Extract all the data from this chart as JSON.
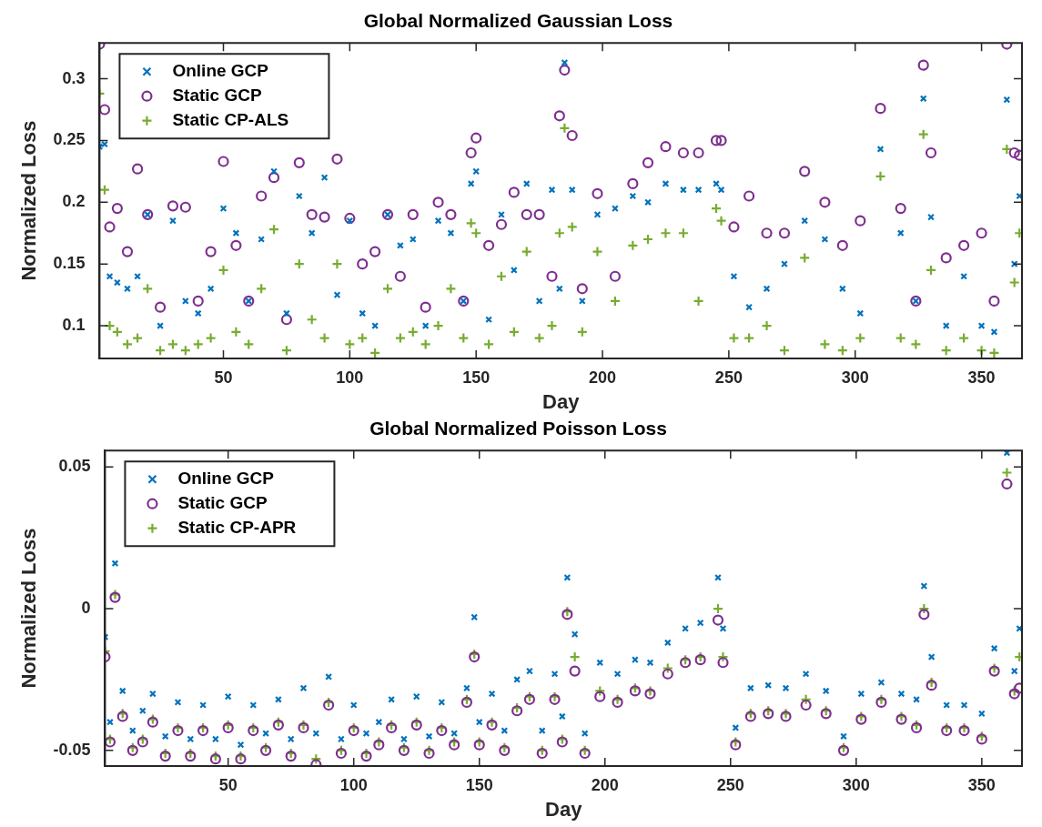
{
  "chart_data": [
    {
      "type": "scatter",
      "title": "Global Normalized Gaussian Loss",
      "xlabel": "Day",
      "ylabel": "Normalized Loss",
      "legend": "top left",
      "xlim": [
        1,
        366
      ],
      "xticks": [
        50,
        100,
        150,
        200,
        250,
        300,
        350
      ],
      "ylim": [
        0.0735,
        0.329
      ],
      "yticks": [
        0.1,
        0.15,
        0.2,
        0.25,
        0.3
      ],
      "x": [
        1,
        3,
        5,
        8,
        12,
        16,
        20,
        25,
        30,
        35,
        40,
        45,
        50,
        55,
        60,
        65,
        70,
        75,
        80,
        85,
        90,
        95,
        100,
        105,
        110,
        115,
        120,
        125,
        130,
        135,
        140,
        145,
        148,
        150,
        155,
        160,
        165,
        170,
        175,
        180,
        183,
        185,
        188,
        192,
        198,
        205,
        212,
        218,
        225,
        232,
        238,
        245,
        247,
        252,
        258,
        265,
        272,
        280,
        288,
        295,
        302,
        310,
        318,
        324,
        327,
        330,
        336,
        343,
        350,
        355,
        360,
        363,
        365
      ],
      "series": [
        {
          "name": "Online GCP",
          "color": "#0072bd",
          "marker": "x",
          "values": [
            0.245,
            0.247,
            0.14,
            0.135,
            0.13,
            0.14,
            0.19,
            0.1,
            0.185,
            0.12,
            0.11,
            0.13,
            0.195,
            0.175,
            0.12,
            0.17,
            0.225,
            0.11,
            0.205,
            0.175,
            0.22,
            0.125,
            0.185,
            0.11,
            0.1,
            0.19,
            0.165,
            0.17,
            0.1,
            0.185,
            0.175,
            0.12,
            0.215,
            0.225,
            0.105,
            0.19,
            0.145,
            0.215,
            0.12,
            0.21,
            0.13,
            0.313,
            0.21,
            0.12,
            0.19,
            0.195,
            0.205,
            0.2,
            0.215,
            0.21,
            0.21,
            0.215,
            0.21,
            0.14,
            0.115,
            0.13,
            0.15,
            0.185,
            0.17,
            0.13,
            0.11,
            0.243,
            0.175,
            0.12,
            0.284,
            0.188,
            0.1,
            0.14,
            0.1,
            0.095,
            0.283,
            0.15,
            0.205
          ]
        },
        {
          "name": "Static GCP",
          "color": "#7e2f8e",
          "marker": "circle",
          "values": [
            0.328,
            0.275,
            0.18,
            0.195,
            0.16,
            0.227,
            0.19,
            0.115,
            0.197,
            0.196,
            0.12,
            0.16,
            0.233,
            0.165,
            0.12,
            0.205,
            0.22,
            0.105,
            0.232,
            0.19,
            0.188,
            0.235,
            0.187,
            0.15,
            0.16,
            0.19,
            0.14,
            0.19,
            0.115,
            0.2,
            0.19,
            0.12,
            0.24,
            0.252,
            0.165,
            0.182,
            0.208,
            0.19,
            0.19,
            0.14,
            0.27,
            0.307,
            0.254,
            0.13,
            0.207,
            0.14,
            0.215,
            0.232,
            0.245,
            0.24,
            0.24,
            0.25,
            0.25,
            0.18,
            0.205,
            0.175,
            0.175,
            0.225,
            0.2,
            0.165,
            0.185,
            0.276,
            0.195,
            0.12,
            0.311,
            0.24,
            0.155,
            0.165,
            0.175,
            0.12,
            0.328,
            0.24,
            0.238
          ]
        },
        {
          "name": "Static CP-ALS",
          "color": "#77ac30",
          "marker": "cross",
          "values": [
            0.288,
            0.21,
            0.1,
            0.095,
            0.085,
            0.09,
            0.13,
            0.08,
            0.085,
            0.08,
            0.085,
            0.09,
            0.145,
            0.095,
            0.085,
            0.13,
            0.178,
            0.08,
            0.15,
            0.105,
            0.09,
            0.15,
            0.085,
            0.09,
            0.078,
            0.13,
            0.09,
            0.095,
            0.085,
            0.1,
            0.13,
            0.09,
            0.183,
            0.175,
            0.085,
            0.14,
            0.095,
            0.16,
            0.09,
            0.1,
            0.175,
            0.26,
            0.18,
            0.095,
            0.16,
            0.12,
            0.165,
            0.17,
            0.175,
            0.175,
            0.12,
            0.195,
            0.185,
            0.09,
            0.09,
            0.1,
            0.08,
            0.155,
            0.085,
            0.08,
            0.09,
            0.221,
            0.09,
            0.085,
            0.255,
            0.145,
            0.08,
            0.09,
            0.08,
            0.078,
            0.243,
            0.135,
            0.175
          ]
        }
      ]
    },
    {
      "type": "scatter",
      "title": "Global Normalized Poisson Loss",
      "xlabel": "Day",
      "ylabel": "Normalized Loss",
      "legend": "top left",
      "xlim": [
        1,
        366
      ],
      "xticks": [
        50,
        100,
        150,
        200,
        250,
        300,
        350
      ],
      "ylim": [
        -0.0555,
        0.0558
      ],
      "yticks": [
        -0.05,
        0,
        0.05
      ],
      "x": [
        1,
        3,
        5,
        8,
        12,
        16,
        20,
        25,
        30,
        35,
        40,
        45,
        50,
        55,
        60,
        65,
        70,
        75,
        80,
        85,
        90,
        95,
        100,
        105,
        110,
        115,
        120,
        125,
        130,
        135,
        140,
        145,
        148,
        150,
        155,
        160,
        165,
        170,
        175,
        180,
        183,
        185,
        188,
        192,
        198,
        205,
        212,
        218,
        225,
        232,
        238,
        245,
        247,
        252,
        258,
        265,
        272,
        280,
        288,
        295,
        302,
        310,
        318,
        324,
        327,
        330,
        336,
        343,
        350,
        355,
        360,
        363,
        365
      ],
      "series": [
        {
          "name": "Online GCP",
          "color": "#0072bd",
          "marker": "x",
          "values": [
            -0.01,
            -0.04,
            0.016,
            -0.029,
            -0.043,
            -0.036,
            -0.03,
            -0.045,
            -0.033,
            -0.046,
            -0.034,
            -0.046,
            -0.031,
            -0.048,
            -0.034,
            -0.044,
            -0.032,
            -0.046,
            -0.028,
            -0.044,
            -0.024,
            -0.046,
            -0.034,
            -0.044,
            -0.04,
            -0.032,
            -0.046,
            -0.031,
            -0.045,
            -0.033,
            -0.044,
            -0.028,
            -0.003,
            -0.04,
            -0.03,
            -0.043,
            -0.025,
            -0.022,
            -0.043,
            -0.023,
            -0.038,
            0.011,
            -0.009,
            -0.044,
            -0.019,
            -0.023,
            -0.018,
            -0.019,
            -0.012,
            -0.007,
            -0.005,
            0.011,
            -0.007,
            -0.042,
            -0.028,
            -0.027,
            -0.028,
            -0.023,
            -0.029,
            -0.045,
            -0.03,
            -0.026,
            -0.03,
            -0.032,
            0.008,
            -0.017,
            -0.034,
            -0.034,
            -0.037,
            -0.014,
            0.055,
            -0.022,
            -0.007
          ]
        },
        {
          "name": "Static GCP",
          "color": "#7e2f8e",
          "marker": "circle",
          "values": [
            -0.017,
            -0.047,
            0.004,
            -0.038,
            -0.05,
            -0.047,
            -0.04,
            -0.052,
            -0.043,
            -0.052,
            -0.043,
            -0.053,
            -0.042,
            -0.053,
            -0.043,
            -0.05,
            -0.041,
            -0.052,
            -0.042,
            -0.055,
            -0.034,
            -0.051,
            -0.043,
            -0.052,
            -0.048,
            -0.042,
            -0.05,
            -0.041,
            -0.051,
            -0.043,
            -0.048,
            -0.033,
            -0.017,
            -0.048,
            -0.041,
            -0.05,
            -0.036,
            -0.032,
            -0.051,
            -0.032,
            -0.047,
            -0.002,
            -0.022,
            -0.051,
            -0.031,
            -0.033,
            -0.029,
            -0.03,
            -0.023,
            -0.019,
            -0.018,
            -0.004,
            -0.019,
            -0.048,
            -0.038,
            -0.037,
            -0.038,
            -0.034,
            -0.037,
            -0.05,
            -0.039,
            -0.033,
            -0.039,
            -0.042,
            -0.002,
            -0.027,
            -0.043,
            -0.043,
            -0.046,
            -0.022,
            0.044,
            -0.03,
            -0.028
          ]
        },
        {
          "name": "Static CP-APR",
          "color": "#77ac30",
          "marker": "cross",
          "values": [
            -0.015,
            -0.046,
            0.005,
            -0.037,
            -0.049,
            -0.046,
            -0.039,
            -0.051,
            -0.042,
            -0.051,
            -0.042,
            -0.052,
            -0.041,
            -0.052,
            -0.042,
            -0.049,
            -0.04,
            -0.051,
            -0.041,
            -0.053,
            -0.033,
            -0.05,
            -0.042,
            -0.051,
            -0.047,
            -0.041,
            -0.049,
            -0.04,
            -0.05,
            -0.042,
            -0.047,
            -0.032,
            -0.016,
            -0.047,
            -0.04,
            -0.049,
            -0.035,
            -0.031,
            -0.05,
            -0.031,
            -0.046,
            -0.001,
            -0.017,
            -0.05,
            -0.029,
            -0.032,
            -0.028,
            -0.029,
            -0.021,
            -0.018,
            -0.017,
            0,
            -0.017,
            -0.047,
            -0.037,
            -0.036,
            -0.037,
            -0.032,
            -0.036,
            -0.049,
            -0.038,
            -0.032,
            -0.038,
            -0.041,
            0,
            -0.026,
            -0.042,
            -0.042,
            -0.045,
            -0.021,
            0.048,
            -0.029,
            -0.017
          ]
        }
      ]
    }
  ]
}
